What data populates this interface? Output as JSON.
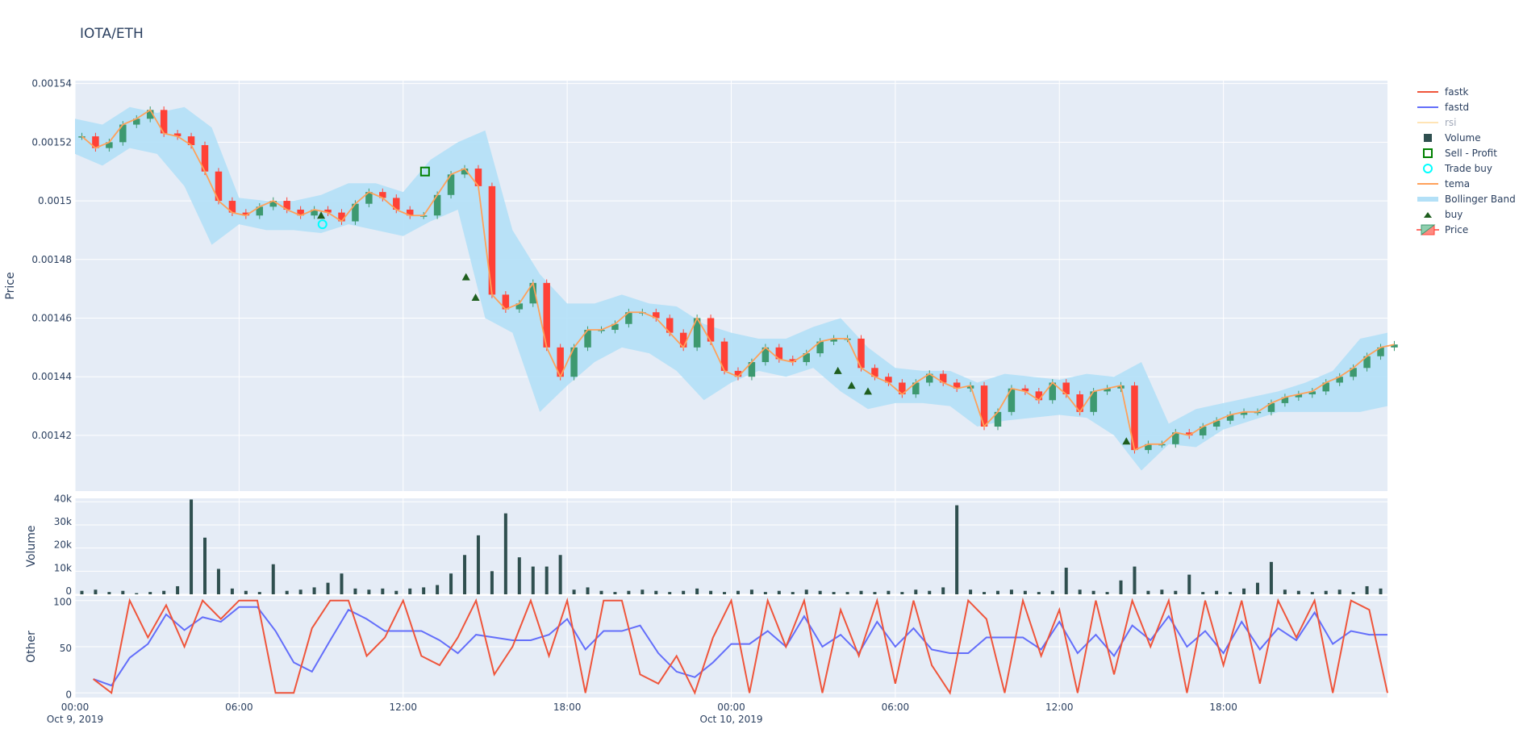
{
  "title": "IOTA/ETH",
  "chart_data": [
    {
      "type": "candlestick",
      "panel": "price",
      "ylabel": "Price",
      "ylim": [
        0.001401,
        0.001541
      ],
      "yticks": [
        "0.00142",
        "0.00144",
        "0.00146",
        "0.00148",
        "0.0015",
        "0.00152",
        "0.00154"
      ],
      "ytick_values": [
        0.00142,
        0.00144,
        0.00146,
        0.00148,
        0.0015,
        0.00152,
        0.00154
      ],
      "xlim": [
        "2019-10-09T00:00",
        "2019-10-11T00:00"
      ],
      "grid": true,
      "interval": "30min",
      "start": "2019-10-09T00:00",
      "close": [
        0.001522,
        0.001518,
        0.00152,
        0.001526,
        0.001528,
        0.001531,
        0.001523,
        0.001522,
        0.001519,
        0.00151,
        0.0015,
        0.001496,
        0.001495,
        0.001498,
        0.0015,
        0.001497,
        0.001495,
        0.001497,
        0.001496,
        0.001493,
        0.001499,
        0.001503,
        0.001501,
        0.001497,
        0.001495,
        0.001495,
        0.001502,
        0.001509,
        0.001511,
        0.001505,
        0.001468,
        0.001463,
        0.001465,
        0.001472,
        0.00145,
        0.00144,
        0.00145,
        0.001456,
        0.001456,
        0.001458,
        0.001462,
        0.001462,
        0.00146,
        0.001455,
        0.00145,
        0.00146,
        0.001452,
        0.001442,
        0.00144,
        0.001445,
        0.00145,
        0.001446,
        0.001445,
        0.001448,
        0.001452,
        0.001453,
        0.001453,
        0.001443,
        0.00144,
        0.001438,
        0.001434,
        0.001438,
        0.001441,
        0.001438,
        0.001436,
        0.001437,
        0.001423,
        0.001428,
        0.001436,
        0.001435,
        0.001432,
        0.001438,
        0.001434,
        0.001428,
        0.001435,
        0.001436,
        0.001437,
        0.001415,
        0.001417,
        0.001417,
        0.001421,
        0.00142,
        0.001423,
        0.001425,
        0.001427,
        0.001428,
        0.001428,
        0.001431,
        0.001433,
        0.001434,
        0.001435,
        0.001438,
        0.00144,
        0.001443,
        0.001447,
        0.00145,
        0.001451
      ],
      "bollinger_band": {
        "name": "Bollinger Band",
        "interval": "1h",
        "upper": [
          0.001528,
          0.001526,
          0.001532,
          0.00153,
          0.001532,
          0.001525,
          0.001501,
          0.0015,
          0.0015,
          0.001502,
          0.001506,
          0.001506,
          0.001503,
          0.001514,
          0.00152,
          0.001524,
          0.00149,
          0.001475,
          0.001465,
          0.001465,
          0.001468,
          0.001465,
          0.001464,
          0.001458,
          0.001455,
          0.001453,
          0.001453,
          0.001457,
          0.00146,
          0.00145,
          0.001443,
          0.001442,
          0.001442,
          0.001438,
          0.001441,
          0.00144,
          0.001439,
          0.001441,
          0.00144,
          0.001445,
          0.001424,
          0.001429,
          0.001431,
          0.001433,
          0.001435,
          0.001438,
          0.001442,
          0.001453,
          0.001455
        ],
        "lower": [
          0.001516,
          0.001512,
          0.001518,
          0.001516,
          0.001505,
          0.001485,
          0.001492,
          0.00149,
          0.00149,
          0.001489,
          0.001492,
          0.00149,
          0.001488,
          0.001493,
          0.001497,
          0.00146,
          0.001455,
          0.001428,
          0.001437,
          0.001445,
          0.00145,
          0.001448,
          0.001442,
          0.001432,
          0.001438,
          0.001442,
          0.00144,
          0.001443,
          0.001435,
          0.001429,
          0.001431,
          0.001431,
          0.00143,
          0.001423,
          0.001425,
          0.001426,
          0.001427,
          0.001426,
          0.00142,
          0.001408,
          0.001417,
          0.001416,
          0.001422,
          0.001425,
          0.001428,
          0.001428,
          0.001428,
          0.001428,
          0.00143
        ]
      },
      "markers": {
        "buy": [
          [
            "2019-10-09T09:00",
            0.001495
          ],
          [
            "2019-10-09T14:18",
            0.001474
          ],
          [
            "2019-10-09T14:39",
            0.001467
          ],
          [
            "2019-10-10T03:54",
            0.001442
          ],
          [
            "2019-10-10T04:24",
            0.001437
          ],
          [
            "2019-10-10T05:00",
            0.001435
          ],
          [
            "2019-10-10T14:27",
            0.001418
          ]
        ],
        "trade_buy": [
          [
            "2019-10-09T09:03",
            0.001492
          ]
        ],
        "sell_profit": [
          [
            "2019-10-09T12:48",
            0.00151
          ]
        ]
      }
    },
    {
      "type": "bar",
      "panel": "volume",
      "ylabel": "Volume",
      "ylim": [
        0,
        41500
      ],
      "yticks": [
        "0",
        "10k",
        "20k",
        "30k",
        "40k"
      ],
      "ytick_values": [
        0,
        10000,
        20000,
        30000,
        40000
      ],
      "interval": "30min",
      "start": "2019-10-09T00:00",
      "values": [
        1500,
        2000,
        1000,
        1500,
        500,
        1000,
        1500,
        3500,
        41000,
        24500,
        11000,
        2500,
        1500,
        1000,
        13000,
        1500,
        2000,
        3000,
        5000,
        9000,
        2500,
        2000,
        2500,
        1500,
        2500,
        3000,
        4000,
        9000,
        17000,
        25500,
        10000,
        35000,
        16000,
        12000,
        12000,
        17000,
        2000,
        3000,
        1500,
        1000,
        1500,
        2000,
        1500,
        1000,
        1500,
        2500,
        1500,
        1000,
        1500,
        2000,
        1000,
        1500,
        1000,
        2000,
        1500,
        1000,
        1000,
        1500,
        1000,
        1500,
        1000,
        2000,
        1500,
        3000,
        38500,
        2000,
        1000,
        1500,
        2000,
        1500,
        1000,
        1500,
        11500,
        2000,
        1500,
        1000,
        6000,
        12000,
        1500,
        2000,
        1500,
        8500,
        1000,
        1500,
        1000,
        2500,
        5000,
        14000,
        2000,
        1500,
        1000,
        1500,
        2000,
        1000,
        3500,
        2500
      ]
    },
    {
      "type": "line",
      "panel": "other",
      "ylabel": "Other",
      "ylim": [
        -5,
        105
      ],
      "yticks": [
        "0",
        "50",
        "100"
      ],
      "ytick_values": [
        0,
        50,
        100
      ],
      "interval": "40min",
      "start": "2019-10-09T00:40",
      "series": [
        {
          "name": "fastk",
          "values": [
            15,
            0,
            100,
            60,
            95,
            50,
            100,
            80,
            100,
            100,
            0,
            0,
            70,
            100,
            100,
            40,
            60,
            100,
            40,
            30,
            60,
            100,
            20,
            50,
            100,
            40,
            100,
            0,
            100,
            100,
            20,
            10,
            40,
            0,
            60,
            100,
            0,
            100,
            50,
            100,
            0,
            90,
            40,
            100,
            10,
            100,
            30,
            0,
            100,
            80,
            0,
            100,
            40,
            90,
            0,
            100,
            20,
            100,
            50,
            100,
            0,
            100,
            30,
            100,
            10,
            100,
            60,
            100,
            0,
            100,
            90,
            0
          ]
        },
        {
          "name": "fastd",
          "values": [
            15,
            8,
            38,
            53,
            85,
            68,
            82,
            77,
            93,
            93,
            67,
            33,
            23,
            57,
            90,
            80,
            67,
            67,
            67,
            57,
            43,
            63,
            60,
            57,
            57,
            63,
            80,
            47,
            67,
            67,
            73,
            43,
            23,
            17,
            33,
            53,
            53,
            67,
            50,
            83,
            50,
            63,
            43,
            77,
            50,
            70,
            47,
            43,
            43,
            60,
            60,
            60,
            47,
            77,
            43,
            63,
            40,
            73,
            57,
            83,
            50,
            67,
            43,
            77,
            47,
            70,
            57,
            87,
            53,
            67,
            63,
            63
          ]
        }
      ]
    }
  ],
  "xaxis": {
    "ticks": [
      {
        "t": "2019-10-09T00:00",
        "label": "00:00",
        "sub": "Oct 9, 2019"
      },
      {
        "t": "2019-10-09T06:00",
        "label": "06:00",
        "sub": ""
      },
      {
        "t": "2019-10-09T12:00",
        "label": "12:00",
        "sub": ""
      },
      {
        "t": "2019-10-09T18:00",
        "label": "18:00",
        "sub": ""
      },
      {
        "t": "2019-10-10T00:00",
        "label": "00:00",
        "sub": "Oct 10, 2019"
      },
      {
        "t": "2019-10-10T06:00",
        "label": "06:00",
        "sub": ""
      },
      {
        "t": "2019-10-10T12:00",
        "label": "12:00",
        "sub": ""
      },
      {
        "t": "2019-10-10T18:00",
        "label": "18:00",
        "sub": ""
      }
    ]
  },
  "legend": [
    {
      "label": "fastk",
      "symbol": "line",
      "color": "#ef553b",
      "visible": true
    },
    {
      "label": "fastd",
      "symbol": "line",
      "color": "#636efa",
      "visible": true
    },
    {
      "label": "rsi",
      "symbol": "line",
      "color": "#ffe4b5",
      "visible": false
    },
    {
      "label": "Volume",
      "symbol": "square",
      "color": "#2f4f4f",
      "visible": true
    },
    {
      "label": "Sell - Profit",
      "symbol": "square-open",
      "color": "#008000",
      "visible": true
    },
    {
      "label": "Trade buy",
      "symbol": "circle-open",
      "color": "#00ffff",
      "visible": true
    },
    {
      "label": "tema",
      "symbol": "line",
      "color": "#ffa15a",
      "visible": true
    },
    {
      "label": "Bollinger Band",
      "symbol": "band",
      "color": "#b3e0f7",
      "visible": true
    },
    {
      "label": "buy",
      "symbol": "triangle",
      "color": "#1e5e1e",
      "visible": true
    },
    {
      "label": "Price",
      "symbol": "candle",
      "color": "#3d9970",
      "visible": true
    }
  ],
  "colors": {
    "increasing": "#3d9970",
    "decreasing": "#ff4136",
    "tema": "#ffa15a",
    "band": "#b3e0f7",
    "volume": "#2f4f4f",
    "plot_bg": "#e5ecf6"
  }
}
